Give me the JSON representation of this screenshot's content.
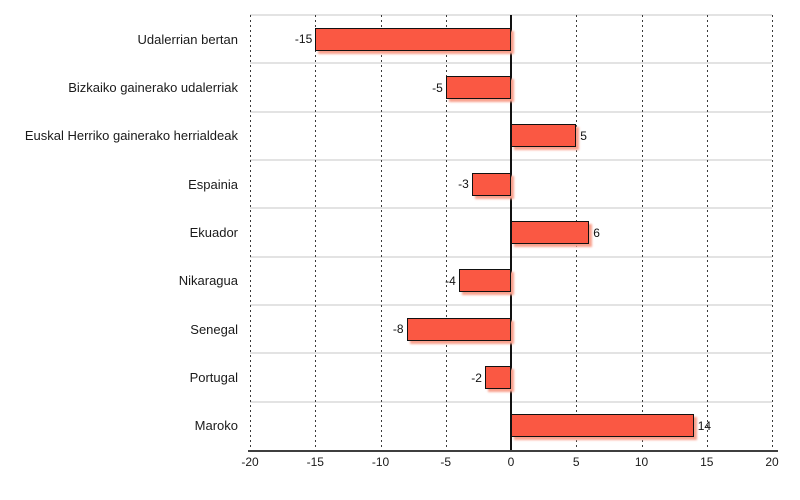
{
  "chart_data": {
    "type": "bar",
    "orientation": "horizontal",
    "title": "",
    "xlabel": "",
    "ylabel": "",
    "legend": "none",
    "categories": [
      "Udalerrian bertan",
      "Bizkaiko gainerako udalerriak",
      "Euskal Herriko gainerako herrialdeak",
      "Espainia",
      "Ekuador",
      "Nikaragua",
      "Senegal",
      "Portugal",
      "Maroko"
    ],
    "values": [
      -15,
      -5,
      5,
      -3,
      6,
      -4,
      -8,
      -2,
      14
    ],
    "value_labels": [
      "-15",
      "-5",
      "5",
      "-3",
      "6",
      "-4",
      "-8",
      "-2",
      "14"
    ],
    "x_ticks": [
      -20,
      -15,
      -10,
      -5,
      0,
      5,
      10,
      15,
      20
    ],
    "x_tick_labels": [
      "-20",
      "-15",
      "-10",
      "-5",
      "0",
      "5",
      "10",
      "15",
      "20"
    ],
    "xlim": [
      -20,
      20
    ],
    "grid": "vertical-dotted-every-5-with-horizontal-band-separators"
  },
  "colors": {
    "background": "#FFFFFF",
    "bar_fill": "#FA5843",
    "bar_border": "#111111",
    "bar_shadow": "#F9A18E",
    "zero_axis": "#111111",
    "x_axis": "#3F3F3F",
    "gridline_dot": "#3A3A3A",
    "band_separator": "#E3E3E3",
    "text": "#1A1A1A"
  }
}
